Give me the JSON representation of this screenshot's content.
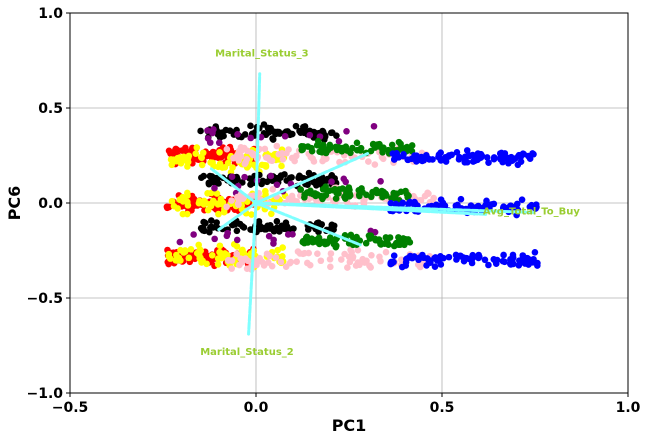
{
  "chart_data": {
    "type": "scatter",
    "title": "",
    "xlabel": "PC1",
    "ylabel": "PC6",
    "xlim": [
      -0.5,
      1.0
    ],
    "ylim": [
      -1.0,
      1.0
    ],
    "xticks": [
      -0.5,
      0.0,
      0.5,
      1.0
    ],
    "xtick_labels": [
      "−0.5",
      "0.0",
      "0.5",
      "1.0"
    ],
    "yticks": [
      -1.0,
      -0.5,
      0.0,
      0.5,
      1.0
    ],
    "ytick_labels": [
      "−1.0",
      "−0.5",
      "0.0",
      "0.5",
      "1.0"
    ],
    "grid": true,
    "series": [
      {
        "color": "#ff0000",
        "x_range": [
          -0.24,
          0.0
        ],
        "bands": [
          0.25,
          0.0,
          -0.28
        ],
        "band_spread": 0.06,
        "count_per_band": 90
      },
      {
        "color": "#ffff00",
        "x_range": [
          -0.24,
          0.08
        ],
        "bands": [
          0.23,
          0.0,
          -0.28
        ],
        "band_spread": 0.08,
        "count_per_band": 70
      },
      {
        "color": "#000000",
        "x_range": [
          -0.15,
          0.22
        ],
        "bands": [
          0.37,
          0.12,
          -0.13
        ],
        "band_spread": 0.05,
        "count_per_band": 80
      },
      {
        "color": "#800080",
        "x_range": [
          -0.22,
          0.35
        ],
        "bands": [
          0.35,
          0.1,
          -0.18
        ],
        "band_spread": 0.08,
        "count_per_band": 15
      },
      {
        "color": "#ffc0cb",
        "x_range": [
          -0.08,
          0.48
        ],
        "bands": [
          0.25,
          0.02,
          -0.3
        ],
        "band_spread": 0.07,
        "count_per_band": 80
      },
      {
        "color": "#008000",
        "x_range": [
          0.12,
          0.42
        ],
        "bands": [
          0.29,
          0.05,
          -0.2
        ],
        "band_spread": 0.05,
        "count_per_band": 70
      },
      {
        "color": "#0000ff",
        "x_range": [
          0.36,
          0.76
        ],
        "bands": [
          0.24,
          -0.02,
          -0.3
        ],
        "band_spread": 0.05,
        "count_per_band": 90
      }
    ],
    "loading_vectors": [
      {
        "label": "Marital_Status_3",
        "x": 0.01,
        "y": 0.68,
        "label_x": -0.11,
        "label_y": 0.77
      },
      {
        "label": "Marital_Status_2",
        "x": -0.02,
        "y": -0.69,
        "label_x": -0.15,
        "label_y": -0.8
      },
      {
        "label": "Avg_Total_To_Buy",
        "x": 0.62,
        "y": -0.06,
        "label_x": 0.61,
        "label_y": -0.06
      },
      {
        "label": "",
        "x": 0.75,
        "y": -0.05
      },
      {
        "label": "",
        "x": 0.3,
        "y": 0.26
      },
      {
        "label": "",
        "x": 0.28,
        "y": -0.22
      },
      {
        "label": "",
        "x": -0.12,
        "y": 0.18
      },
      {
        "label": "",
        "x": -0.1,
        "y": -0.14
      }
    ],
    "vector_color": "#7fffff",
    "annotation_color": "#9acd32"
  }
}
